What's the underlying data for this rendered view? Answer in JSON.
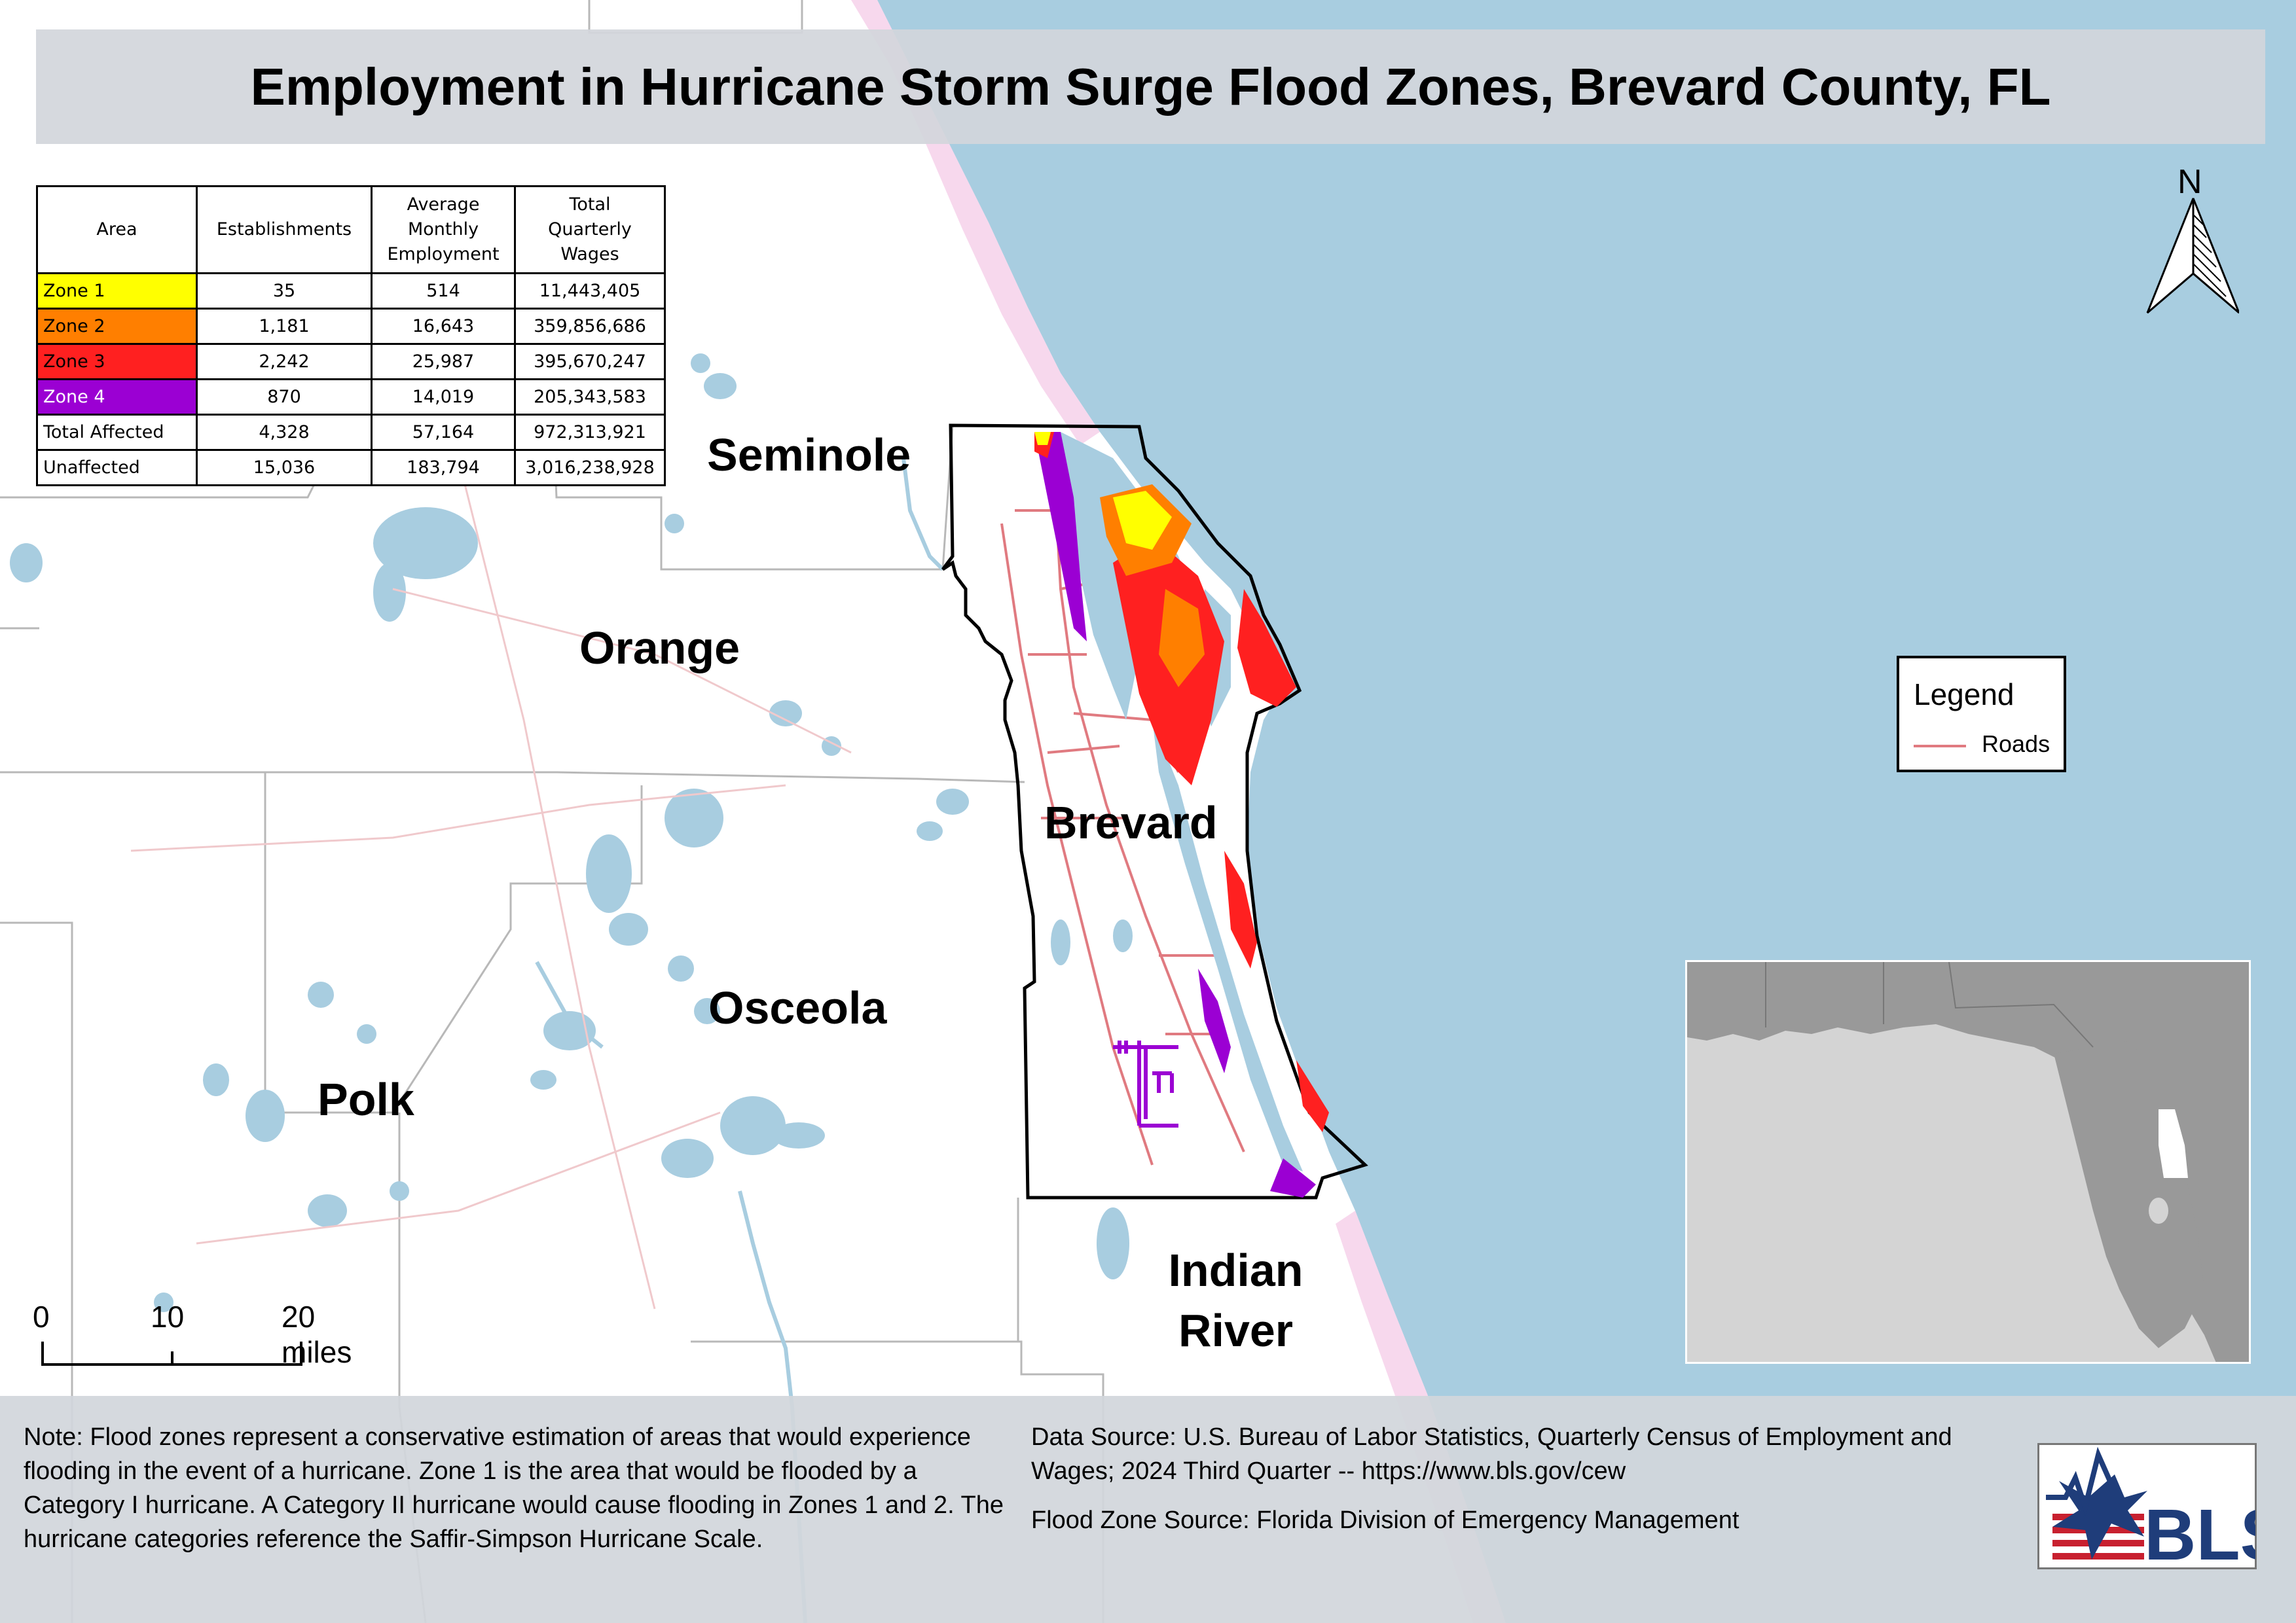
{
  "title": "Employment in Hurricane Storm Surge Flood Zones, Brevard County, FL",
  "table": {
    "headers": [
      "Area",
      "Establishments",
      "Average Monthly Employment",
      "Total Quarterly Wages"
    ],
    "header_lines": [
      [
        "Area"
      ],
      [
        "Establishments"
      ],
      [
        "Average",
        "Monthly",
        "Employment"
      ],
      [
        "Total",
        "Quarterly",
        "Wages"
      ]
    ],
    "rows": [
      {
        "area": "Zone 1",
        "color": "#ffff00",
        "text_color": "#000000",
        "establishments": "35",
        "employment": "514",
        "wages": "11,443,405"
      },
      {
        "area": "Zone 2",
        "color": "#ff7f00",
        "text_color": "#000000",
        "establishments": "1,181",
        "employment": "16,643",
        "wages": "359,856,686"
      },
      {
        "area": "Zone 3",
        "color": "#ff2020",
        "text_color": "#000000",
        "establishments": "2,242",
        "employment": "25,987",
        "wages": "395,670,247"
      },
      {
        "area": "Zone 4",
        "color": "#9b00d3",
        "text_color": "#ffffff",
        "establishments": "870",
        "employment": "14,019",
        "wages": "205,343,583"
      },
      {
        "area": "Total Affected",
        "color": "#ffffff",
        "text_color": "#000000",
        "establishments": "4,328",
        "employment": "57,164",
        "wages": "972,313,921"
      },
      {
        "area": "Unaffected",
        "color": "#ffffff",
        "text_color": "#000000",
        "establishments": "15,036",
        "employment": "183,794",
        "wages": "3,016,238,928"
      }
    ]
  },
  "counties": {
    "seminole": "Seminole",
    "orange": "Orange",
    "brevard": "Brevard",
    "osceola": "Osceola",
    "polk": "Polk",
    "indian_river_1": "Indian",
    "indian_river_2": "River"
  },
  "legend": {
    "title": "Legend",
    "roads_label": "Roads",
    "roads_color": "#e07a80"
  },
  "north_arrow": "N",
  "scale_bar": {
    "labels": [
      "0",
      "10",
      "20 miles"
    ]
  },
  "note": "Note: Flood zones represent a conservative estimation of areas that would experience flooding in the event of a hurricane. Zone 1 is the area that would be flooded by a Category I hurricane. A Category II hurricane would cause flooding in Zones 1 and 2. The hurricane categories reference the Saffir-Simpson Hurricane Scale.",
  "data_source": "Data Source: U.S. Bureau of Labor Statistics, Quarterly Census of Employment and Wages; 2024 Third Quarter -- https://www.bls.gov/cew",
  "flood_zone_source": "Flood Zone Source: Florida Division of Emergency Management",
  "logo_text": "BLS",
  "colors": {
    "ocean": "#a8cde0",
    "water": "#a8cde0",
    "land": "#ffffff",
    "boundary": "#b8b8b8",
    "brevard_outline": "#000000",
    "inset_land": "#999999",
    "inset_water": "#d4d4d4"
  }
}
